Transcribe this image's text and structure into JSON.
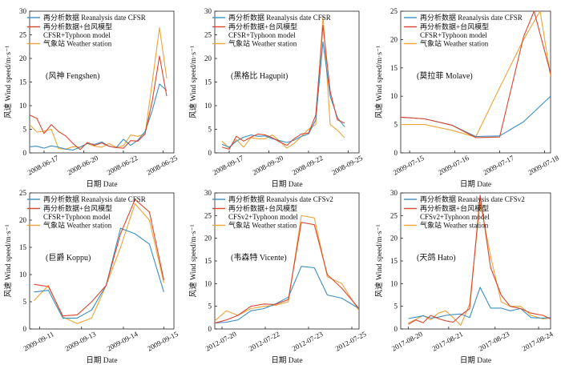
{
  "colors": {
    "reanalysis": "#3a8fc0",
    "model": "#d9472f",
    "station": "#eca43a"
  },
  "chart_data": [
    {
      "type": "line",
      "annotation": "(风神 Fengshen)",
      "xlabel": "日期 Date",
      "ylabel": "风速 Wind speed/m·s⁻¹",
      "ylim": [
        0,
        30
      ],
      "yticks": [
        "0",
        "5",
        "10",
        "15",
        "20",
        "25",
        "30"
      ],
      "xlim": [
        0,
        10
      ],
      "xticks": [
        {
          "pos": 1,
          "label": "2008-06-17"
        },
        {
          "pos": 3.75,
          "label": "2008-06-20"
        },
        {
          "pos": 6.5,
          "label": "2008-06-22"
        },
        {
          "pos": 9.25,
          "label": "2008-06-25"
        }
      ],
      "series": [
        {
          "name": "再分析数据 Reanalysis date CFSR",
          "color_key": "reanalysis",
          "x": [
            0,
            0.5,
            1,
            1.5,
            2,
            2.5,
            3,
            3.5,
            4,
            4.5,
            5,
            5.5,
            6,
            6.5,
            7,
            7.5,
            8,
            8.5,
            9,
            9.5
          ],
          "values": [
            1.3,
            1.4,
            1.0,
            1.5,
            1.2,
            0.8,
            0.6,
            1.2,
            2.0,
            1.8,
            2.3,
            1.4,
            1.1,
            2.9,
            1.6,
            2.7,
            4.5,
            9.0,
            14.6,
            13.2
          ]
        },
        {
          "name": "再分析数据+台风模型 CFSR+Typhoon model",
          "color_key": "model",
          "x": [
            0,
            0.5,
            1,
            1.5,
            2,
            2.5,
            3,
            3.5,
            4,
            4.5,
            5,
            5.5,
            6,
            6.5,
            7,
            7.5,
            8,
            8.5,
            9,
            9.5
          ],
          "values": [
            8.0,
            7.3,
            4.1,
            6.0,
            4.5,
            3.6,
            2.0,
            0.7,
            2.2,
            1.6,
            2.1,
            1.4,
            1.1,
            1.0,
            2.6,
            2.5,
            4.0,
            11.0,
            20.5,
            12.0
          ]
        },
        {
          "name": "气象站 Weather station",
          "color_key": "station",
          "x": [
            0,
            0.5,
            1,
            1.5,
            2,
            2.5,
            3,
            3.5,
            4,
            4.5,
            5,
            5.5,
            6,
            6.5,
            7,
            7.5,
            8,
            8.5,
            9,
            9.5
          ],
          "values": [
            6.0,
            4.4,
            4.6,
            5.0,
            0.9,
            0.8,
            1.3,
            1.2,
            2.0,
            1.4,
            1.2,
            2.0,
            1.2,
            1.5,
            3.8,
            3.5,
            4.0,
            15.0,
            26.5,
            15.8
          ]
        }
      ]
    },
    {
      "type": "line",
      "annotation": "(黑格比 Hagupit)",
      "xlabel": "日期 Date",
      "ylabel": "风速 Wind speed/m·s⁻¹",
      "ylim": [
        0,
        30
      ],
      "yticks": [
        "0",
        "5",
        "10",
        "15",
        "20",
        "25",
        "30"
      ],
      "xlim": [
        0,
        10
      ],
      "xticks": [
        {
          "pos": 1,
          "label": "2008-09-17"
        },
        {
          "pos": 3.75,
          "label": "2008-09-20"
        },
        {
          "pos": 6.5,
          "label": "2008-09-22"
        },
        {
          "pos": 9.25,
          "label": "2008-09-25"
        }
      ],
      "series": [
        {
          "name": "再分析数据 Reanalysis date CFSR",
          "color_key": "reanalysis",
          "x": [
            0.5,
            1,
            1.5,
            2,
            2.5,
            3,
            3.5,
            4,
            4.5,
            5,
            5.5,
            6,
            6.5,
            7,
            7.5,
            8,
            8.5,
            9
          ],
          "values": [
            1.8,
            1.2,
            2.5,
            3.3,
            3.8,
            3.5,
            3.6,
            3.0,
            2.6,
            2.2,
            2.7,
            3.5,
            4.0,
            7.0,
            23.5,
            12.0,
            7.5,
            5.5
          ]
        },
        {
          "name": "再分析数据+台风模型 CFSR+Typhoon model",
          "color_key": "model",
          "x": [
            0.5,
            1,
            1.5,
            2,
            2.5,
            3,
            3.5,
            4,
            4.5,
            5,
            5.5,
            6,
            6.5,
            7,
            7.5,
            8,
            8.5,
            9
          ],
          "values": [
            1.2,
            0.8,
            3.5,
            2.5,
            3.3,
            4.0,
            3.8,
            3.2,
            2.3,
            1.6,
            3.0,
            4.0,
            4.2,
            8.0,
            27.0,
            13.0,
            7.0,
            6.3
          ]
        },
        {
          "name": "气象站 Weather station",
          "color_key": "station",
          "x": [
            0.5,
            1,
            1.5,
            2,
            2.5,
            3,
            3.5,
            4,
            4.5,
            5,
            5.5,
            6,
            6.5,
            7,
            7.5,
            8,
            8.5,
            9
          ],
          "values": [
            2.5,
            1.0,
            2.8,
            1.2,
            3.2,
            3.0,
            3.0,
            3.8,
            2.5,
            1.0,
            2.0,
            3.5,
            5.0,
            6.0,
            29.0,
            6.0,
            4.8,
            3.2
          ]
        }
      ]
    },
    {
      "type": "line",
      "annotation": "(莫拉菲 Molave)",
      "xlabel": "日期 Date",
      "ylabel": "风速 Wind speed/m·s⁻¹",
      "ylim": [
        0,
        25
      ],
      "yticks": [
        "0",
        "5",
        "10",
        "15",
        "20",
        "25"
      ],
      "xlim": [
        0,
        10
      ],
      "xticks": [
        {
          "pos": 0.6,
          "label": "2009-07-15"
        },
        {
          "pos": 3.6,
          "label": "2009-07-16"
        },
        {
          "pos": 6.6,
          "label": "2009-07-17"
        },
        {
          "pos": 9.6,
          "label": "2009-07-18"
        }
      ],
      "series": [
        {
          "name": "再分析数据 Reanalysis date CFSR",
          "color_key": "reanalysis",
          "x": [
            0,
            1.6,
            3.4,
            5,
            6.6,
            8.2,
            10
          ],
          "values": [
            6.3,
            6.0,
            4.9,
            2.9,
            3.0,
            5.5,
            10.0
          ]
        },
        {
          "name": "再分析数据+台风模型 CFSR+Typhoon model",
          "color_key": "model",
          "x": [
            0,
            1.6,
            3.4,
            5,
            6.6,
            8.2,
            8.9,
            10
          ],
          "values": [
            6.3,
            6.0,
            4.9,
            2.7,
            2.8,
            20.5,
            25.0,
            14.0
          ]
        },
        {
          "name": "气象站 Weather station",
          "color_key": "station",
          "x": [
            0,
            1.6,
            3.4,
            5,
            6.6,
            8.2,
            9.3,
            10
          ],
          "values": [
            5.0,
            5.0,
            4.0,
            2.8,
            11.5,
            20.0,
            25.0,
            13.5
          ]
        }
      ]
    },
    {
      "type": "line",
      "annotation": "(巨爵 Koppu)",
      "xlabel": "日期 Date",
      "ylabel": "风速 Wind speed/m·s⁻¹",
      "ylim": [
        0,
        25
      ],
      "yticks": [
        "0",
        "5",
        "10",
        "15",
        "20",
        "25"
      ],
      "xlim": [
        0,
        10
      ],
      "xticks": [
        {
          "pos": 0.7,
          "label": "2009-09-11"
        },
        {
          "pos": 3.6,
          "label": "2009-09-13"
        },
        {
          "pos": 6.5,
          "label": "2009-09-14"
        },
        {
          "pos": 9.3,
          "label": "2009-09-15"
        }
      ],
      "series": [
        {
          "name": "再分析数据 Reanalysis date CFSR",
          "color_key": "reanalysis",
          "x": [
            0.3,
            1.3,
            2.3,
            3.3,
            4.3,
            5.3,
            6.3,
            7.3,
            8.3,
            9.3
          ],
          "values": [
            6.8,
            7.1,
            2.0,
            2.0,
            3.5,
            8.0,
            18.5,
            17.5,
            15.6,
            6.8
          ]
        },
        {
          "name": "再分析数据+台风模型 CFSR+Typhoon model",
          "color_key": "model",
          "x": [
            0.3,
            1.3,
            2.3,
            3.3,
            4.3,
            5.3,
            6.3,
            7.3,
            8.3,
            9.3
          ],
          "values": [
            8.2,
            7.8,
            2.4,
            2.6,
            5.0,
            8.0,
            17.5,
            23.8,
            21.5,
            9.0
          ]
        },
        {
          "name": "气象站 Weather station",
          "color_key": "station",
          "x": [
            0.3,
            1.3,
            2.3,
            3.3,
            4.3,
            5.3,
            6.3,
            7.3,
            8.3,
            9.3
          ],
          "values": [
            5.2,
            8.0,
            2.2,
            1.0,
            2.0,
            8.0,
            15.0,
            23.0,
            20.0,
            8.5
          ]
        }
      ]
    },
    {
      "type": "line",
      "annotation": "(韦森特 Vicente)",
      "xlabel": "日期 Date",
      "ylabel": "风速 Wind speed/m·s⁻¹",
      "ylim": [
        0,
        30
      ],
      "yticks": [
        "0",
        "5",
        "10",
        "15",
        "20",
        "25",
        "30"
      ],
      "xlim": [
        0,
        10
      ],
      "xticks": [
        {
          "pos": 0.5,
          "label": "2012-07-20"
        },
        {
          "pos": 3.5,
          "label": "2012-07-22"
        },
        {
          "pos": 6.5,
          "label": "2012-07-23"
        },
        {
          "pos": 9.5,
          "label": "2012-07-25"
        }
      ],
      "series": [
        {
          "name": "再分析数据 Reanalysis date CFSv2",
          "color_key": "reanalysis",
          "x": [
            0,
            0.8,
            1.6,
            2.5,
            3.4,
            4.2,
            5.1,
            6.0,
            6.9,
            7.8,
            8.8,
            10
          ],
          "values": [
            1.3,
            1.5,
            2.0,
            4.0,
            4.5,
            5.5,
            7.0,
            13.8,
            13.5,
            7.5,
            6.8,
            4.5
          ]
        },
        {
          "name": "再分析数据+台风模型 CFSv2+Typhoon model",
          "color_key": "model",
          "x": [
            0,
            0.8,
            1.6,
            2.5,
            3.4,
            4.2,
            5.1,
            6.0,
            6.9,
            7.8,
            8.8,
            10
          ],
          "values": [
            1.3,
            2.0,
            3.0,
            5.0,
            5.5,
            5.4,
            6.5,
            23.5,
            23.0,
            12.0,
            9.0,
            4.5
          ]
        },
        {
          "name": "气象站 Weather station",
          "color_key": "station",
          "x": [
            0,
            0.8,
            1.6,
            2.5,
            3.4,
            4.2,
            5.1,
            6.0,
            6.9,
            7.8,
            8.8,
            10
          ],
          "values": [
            1.8,
            4.0,
            3.0,
            4.5,
            5.0,
            5.2,
            6.0,
            25.0,
            24.5,
            11.5,
            10.0,
            4.0
          ]
        }
      ]
    },
    {
      "type": "line",
      "annotation": "(天鸽 Hato)",
      "xlabel": "日期 Date",
      "ylabel": "风速 Wind speed/m·s⁻¹",
      "ylim": [
        0,
        30
      ],
      "yticks": [
        "0",
        "5",
        "10",
        "15",
        "20",
        "25",
        "30"
      ],
      "xlim": [
        0,
        10
      ],
      "xticks": [
        {
          "pos": 0.5,
          "label": "2017-08-20"
        },
        {
          "pos": 3.2,
          "label": "2017-08-21"
        },
        {
          "pos": 6.3,
          "label": "2017-08-23"
        },
        {
          "pos": 9.2,
          "label": "2017-08-24"
        }
      ],
      "series": [
        {
          "name": "再分析数据 Reanalysis date CFSv2",
          "color_key": "reanalysis",
          "x": [
            0.5,
            1,
            1.5,
            2,
            2.5,
            3,
            3.5,
            4,
            4.6,
            5.3,
            6,
            6.7,
            7.3,
            8,
            8.7,
            9.5,
            10
          ],
          "values": [
            2.3,
            2.6,
            2.9,
            2.4,
            2.6,
            3.0,
            3.2,
            3.3,
            2.5,
            9.2,
            4.6,
            4.6,
            4.0,
            4.5,
            2.5,
            2.4,
            2.5
          ]
        },
        {
          "name": "再分析数据+台风模型 CFSv2+Typhoon model",
          "color_key": "model",
          "x": [
            0.5,
            1,
            1.5,
            2,
            2.5,
            3,
            3.5,
            4,
            4.6,
            5.3,
            6,
            6.7,
            7.3,
            8,
            8.7,
            9.5,
            10
          ],
          "values": [
            1.0,
            2.0,
            1.4,
            3.0,
            2.3,
            1.8,
            1.5,
            3.0,
            4.5,
            29.5,
            13.5,
            7.5,
            5.0,
            4.5,
            3.5,
            3.0,
            2.2
          ]
        },
        {
          "name": "气象站 Weather station",
          "color_key": "station",
          "x": [
            0.5,
            1,
            1.5,
            2,
            2.5,
            3,
            3.5,
            4,
            4.6,
            5.3,
            6,
            6.7,
            7.3,
            8,
            8.7,
            9.5,
            10
          ],
          "values": [
            1.3,
            2.1,
            3.0,
            2.0,
            3.5,
            4.0,
            2.5,
            0.8,
            5.5,
            28.0,
            16.0,
            6.0,
            5.0,
            5.0,
            3.0,
            2.2,
            2.5
          ]
        }
      ]
    }
  ]
}
